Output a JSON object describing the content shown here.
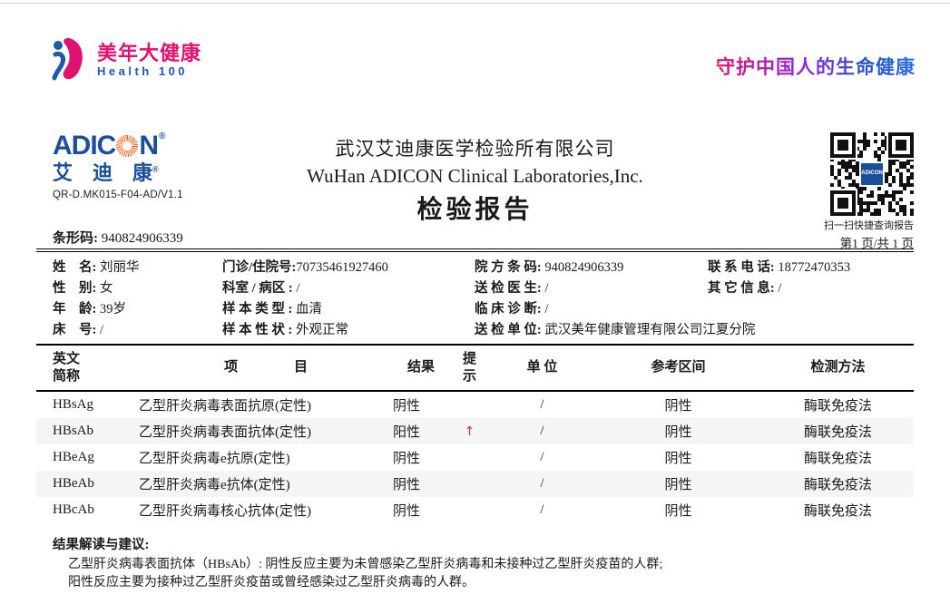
{
  "brand": {
    "cn": "美年大健康",
    "en": "Health 100",
    "slogan": "守护中国人的生命健康"
  },
  "adicon": {
    "wordmark_left": "ADIC",
    "wordmark_right": "N",
    "reg": "®",
    "cn": "艾　迪　康",
    "doc_code": "QR-D.MK015-F04-AD/V1.1"
  },
  "header": {
    "company_cn": "武汉艾迪康医学检验所有限公司",
    "company_en": "WuHan ADICON Clinical Laboratories,Inc.",
    "report_title": "检验报告",
    "barcode_label": "条形码:",
    "barcode_value": "940824906339",
    "qr_logo_text": "ADICON",
    "qr_caption": "扫一扫快捷查询报告",
    "page_info": "第1 页/共 1 页"
  },
  "patient": {
    "name_label": "姓　名:",
    "name": "刘丽华",
    "outpatient_label": "门诊/住院号:",
    "outpatient_no": "70735461927460",
    "hospital_barcode_label": "院 方 条 码:",
    "hospital_barcode": "940824906339",
    "phone_label": "联 系 电 话:",
    "phone": "18772470353",
    "gender_label": "性　别:",
    "gender": "女",
    "dept_label": "科室 / 病区 :",
    "dept": "/",
    "doctor_label": "送 检 医 生:",
    "doctor": "/",
    "other_label": "其 它 信 息:",
    "other": "/",
    "age_label": "年　龄:",
    "age": "39岁",
    "sample_type_label": "样 本 类 型 :",
    "sample_type": "血清",
    "diagnosis_label": "临 床 诊 断:",
    "diagnosis": "/",
    "bed_label": "床　号:",
    "bed": "/",
    "sample_state_label": "样 本 性 状 :",
    "sample_state": "外观正常",
    "unit_label": "送 检 单 位:",
    "unit": "武汉美年健康管理有限公司江夏分院"
  },
  "table": {
    "header": {
      "abbr1": "英文",
      "abbr2": "简称",
      "item1": "项",
      "item2": "目",
      "result": "结果",
      "flag1": "提",
      "flag2": "示",
      "unit": "单 位",
      "ref": "参考区间",
      "method": "检测方法"
    },
    "rows": [
      {
        "abbr": "HBsAg",
        "item": "乙型肝炎病毒表面抗原(定性)",
        "result": "阴性",
        "flag": "",
        "unit": "/",
        "ref": "阴性",
        "method": "酶联免疫法"
      },
      {
        "abbr": "HBsAb",
        "item": "乙型肝炎病毒表面抗体(定性)",
        "result": "阳性",
        "flag": "↑",
        "unit": "/",
        "ref": "阴性",
        "method": "酶联免疫法"
      },
      {
        "abbr": "HBeAg",
        "item": "乙型肝炎病毒e抗原(定性)",
        "result": "阴性",
        "flag": "",
        "unit": "/",
        "ref": "阴性",
        "method": "酶联免疫法"
      },
      {
        "abbr": "HBeAb",
        "item": "乙型肝炎病毒e抗体(定性)",
        "result": "阴性",
        "flag": "",
        "unit": "/",
        "ref": "阴性",
        "method": "酶联免疫法"
      },
      {
        "abbr": "HBcAb",
        "item": "乙型肝炎病毒核心抗体(定性)",
        "result": "阴性",
        "flag": "",
        "unit": "/",
        "ref": "阴性",
        "method": "酶联免疫法"
      }
    ]
  },
  "interpretation": {
    "title": "结果解读与建议:",
    "line1": "乙型肝炎病毒表面抗体（HBsAb）: 阴性反应主要为未曾感染乙型肝炎病毒和未接种过乙型肝炎疫苗的人群;",
    "line2": "阳性反应主要为接种过乙型肝炎疫苗或曾经感染过乙型肝炎病毒的人群。"
  },
  "colors": {
    "brand_pink": "#e0116f",
    "brand_blue": "#1d5aa8",
    "adicon_blue": "#1b4f9c",
    "sunburst_orange": "#e8611c",
    "flag_red": "#d62f2f",
    "row_stripe": "#f5f5f5"
  }
}
